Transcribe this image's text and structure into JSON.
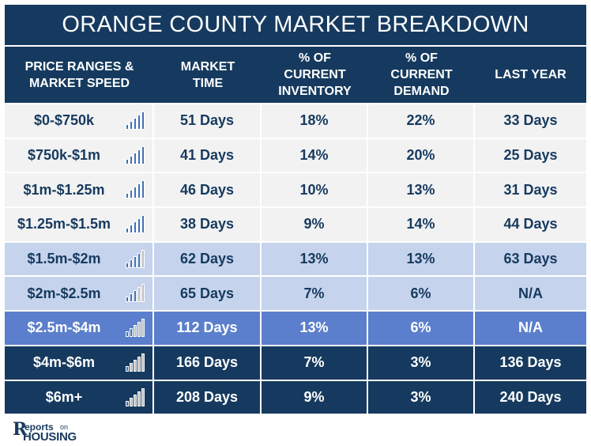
{
  "title": "ORANGE COUNTY MARKET BREAKDOWN",
  "headers": {
    "range": "PRICE RANGES & MARKET SPEED",
    "market_time": "MARKET TIME",
    "inventory": "% OF CURRENT INVENTORY",
    "demand": "% OF CURRENT DEMAND",
    "last_year": "LAST YEAR"
  },
  "colors": {
    "navy": "#163a5f",
    "light_row": "#f2f2f2",
    "mid_row": "#c5d3ec",
    "blue_row": "#5b7fcc",
    "speed_blue": "#3f6fb5",
    "speed_gray": "#bdbdbd"
  },
  "rows": [
    {
      "range": "$0-$750k",
      "market_time": "51 Days",
      "inventory": "18%",
      "demand": "22%",
      "last_year": "33 Days",
      "speed_level": 5,
      "tier": "light"
    },
    {
      "range": "$750k-$1m",
      "market_time": "41 Days",
      "inventory": "14%",
      "demand": "20%",
      "last_year": "25 Days",
      "speed_level": 5,
      "tier": "light"
    },
    {
      "range": "$1m-$1.25m",
      "market_time": "46 Days",
      "inventory": "10%",
      "demand": "13%",
      "last_year": "31 Days",
      "speed_level": 5,
      "tier": "light"
    },
    {
      "range": "$1.25m-$1.5m",
      "market_time": "38 Days",
      "inventory": "9%",
      "demand": "14%",
      "last_year": "44 Days",
      "speed_level": 5,
      "tier": "light"
    },
    {
      "range": "$1.5m-$2m",
      "market_time": "62 Days",
      "inventory": "13%",
      "demand": "13%",
      "last_year": "63 Days",
      "speed_level": 4,
      "tier": "mid"
    },
    {
      "range": "$2m-$2.5m",
      "market_time": "65 Days",
      "inventory": "7%",
      "demand": "6%",
      "last_year": "N/A",
      "speed_level": 3,
      "tier": "mid"
    },
    {
      "range": "$2.5m-$4m",
      "market_time": "112 Days",
      "inventory": "13%",
      "demand": "6%",
      "last_year": "N/A",
      "speed_level": 2,
      "tier": "blue"
    },
    {
      "range": "$4m-$6m",
      "market_time": "166 Days",
      "inventory": "7%",
      "demand": "3%",
      "last_year": "136 Days",
      "speed_level": 1,
      "tier": "dark"
    },
    {
      "range": "$6m+",
      "market_time": "208 Days",
      "inventory": "9%",
      "demand": "3%",
      "last_year": "240 Days",
      "speed_level": 1,
      "tier": "dark"
    }
  ],
  "logo": {
    "r": "R",
    "eports": "eports",
    "on": "on",
    "housing": "HOUSING"
  }
}
